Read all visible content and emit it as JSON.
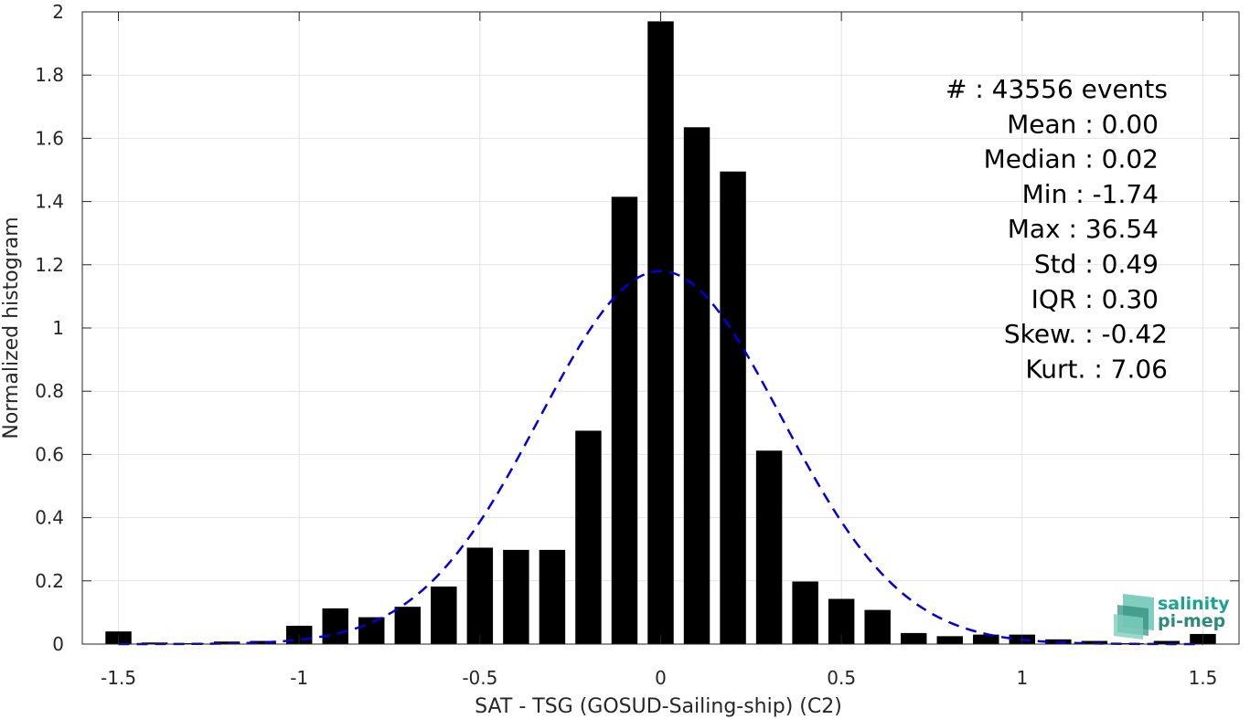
{
  "chart_data": {
    "type": "bar",
    "xlabel": "SAT - TSG (GOSUD-Sailing-ship) (C2)",
    "ylabel": "Normalized histogram",
    "xlim": [
      -1.6,
      1.6
    ],
    "ylim": [
      0,
      2
    ],
    "grid": true,
    "x_ticks": [
      -1.5,
      -1,
      -0.5,
      0,
      0.5,
      1,
      1.5
    ],
    "x_tick_labels": [
      "-1.5",
      "-1",
      "-0.5",
      "0",
      "0.5",
      "1",
      "1.5"
    ],
    "y_ticks": [
      0,
      0.2,
      0.4,
      0.6,
      0.8,
      1,
      1.2,
      1.4,
      1.6,
      1.8,
      2
    ],
    "y_tick_labels": [
      "0",
      "0.2",
      "0.4",
      "0.6",
      "0.8",
      "1",
      "1.2",
      "1.4",
      "1.6",
      "1.8",
      "2"
    ],
    "bin_width": 0.1,
    "bar_color": "#000000",
    "bins": [
      {
        "x": -1.5,
        "y": 0.04
      },
      {
        "x": -1.4,
        "y": 0.005
      },
      {
        "x": -1.3,
        "y": 0.003
      },
      {
        "x": -1.2,
        "y": 0.008
      },
      {
        "x": -1.1,
        "y": 0.01
      },
      {
        "x": -1.0,
        "y": 0.058
      },
      {
        "x": -0.9,
        "y": 0.113
      },
      {
        "x": -0.8,
        "y": 0.085
      },
      {
        "x": -0.7,
        "y": 0.118
      },
      {
        "x": -0.6,
        "y": 0.182
      },
      {
        "x": -0.5,
        "y": 0.305
      },
      {
        "x": -0.4,
        "y": 0.298
      },
      {
        "x": -0.3,
        "y": 0.298
      },
      {
        "x": -0.2,
        "y": 0.675
      },
      {
        "x": -0.1,
        "y": 1.415
      },
      {
        "x": 0.0,
        "y": 1.97
      },
      {
        "x": 0.1,
        "y": 1.635
      },
      {
        "x": 0.2,
        "y": 1.495
      },
      {
        "x": 0.3,
        "y": 0.612
      },
      {
        "x": 0.4,
        "y": 0.198
      },
      {
        "x": 0.5,
        "y": 0.143
      },
      {
        "x": 0.6,
        "y": 0.108
      },
      {
        "x": 0.7,
        "y": 0.035
      },
      {
        "x": 0.8,
        "y": 0.025
      },
      {
        "x": 0.9,
        "y": 0.03
      },
      {
        "x": 1.0,
        "y": 0.03
      },
      {
        "x": 1.1,
        "y": 0.015
      },
      {
        "x": 1.2,
        "y": 0.01
      },
      {
        "x": 1.3,
        "y": 0.003
      },
      {
        "x": 1.4,
        "y": 0.01
      },
      {
        "x": 1.5,
        "y": 0.032
      }
    ],
    "fit_curve": {
      "style": "dashed",
      "color": "#0000dd",
      "mean": 0.0,
      "std": 0.335,
      "peak": 1.18,
      "x_range": [
        -1.5,
        1.5
      ]
    },
    "stats": [
      "#  : 43556 events",
      "Mean : 0.00",
      "Median : 0.02",
      "Min : -1.74",
      "Max : 36.54",
      "Std : 0.49",
      "IQR : 0.30",
      "Skew. : -0.42",
      "Kurt. : 7.06"
    ]
  },
  "logo": {
    "line1": "salinity",
    "line2": "pi-mep",
    "color_primary": "#1aa48c",
    "color_secondary": "#2e8a7a"
  }
}
